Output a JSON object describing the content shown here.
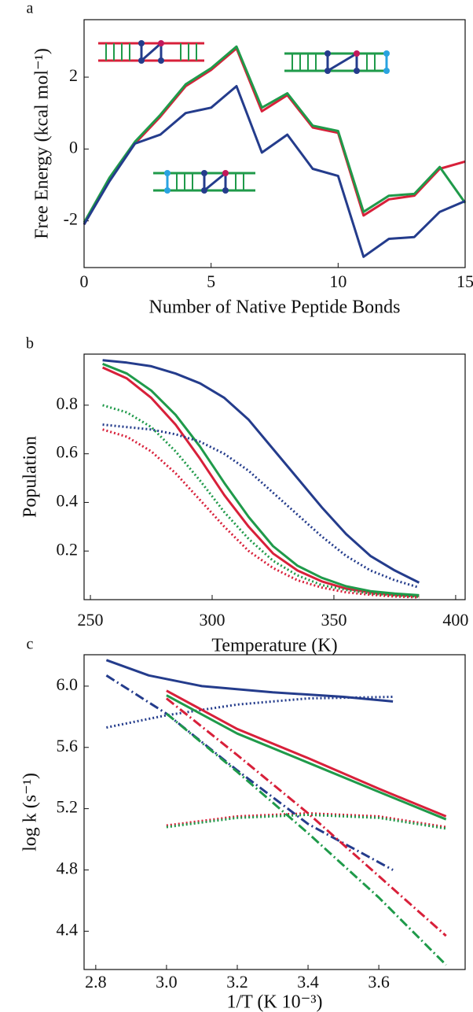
{
  "chart_data": [
    {
      "type": "line",
      "panel_label": "a",
      "x_label": "Number of Native Peptide Bonds",
      "y_label": "Free Energy (kcal mol⁻¹)",
      "x": [
        0,
        1,
        2,
        3,
        4,
        5,
        6,
        7,
        8,
        9,
        10,
        11,
        12,
        13,
        14,
        15
      ],
      "series": [
        {
          "color": "#d8203a",
          "dash": "solid",
          "values": [
            -2.1,
            -0.85,
            0.15,
            0.9,
            1.75,
            2.2,
            2.8,
            1.05,
            1.5,
            0.6,
            0.45,
            -1.85,
            -1.4,
            -1.3,
            -0.55,
            -0.35
          ]
        },
        {
          "color": "#1f9a4a",
          "dash": "solid",
          "values": [
            -2.05,
            -0.8,
            0.2,
            0.95,
            1.8,
            2.25,
            2.85,
            1.15,
            1.55,
            0.65,
            0.5,
            -1.75,
            -1.3,
            -1.25,
            -0.5,
            -1.5
          ]
        },
        {
          "color": "#243c8c",
          "dash": "solid",
          "values": [
            -2.1,
            -0.9,
            0.15,
            0.4,
            1.0,
            1.15,
            1.75,
            -0.1,
            0.4,
            -0.55,
            -0.75,
            -3.0,
            -2.5,
            -2.45,
            -1.75,
            -1.45
          ]
        }
      ],
      "xlim": [
        0,
        15
      ],
      "ylim": [
        -3.3,
        3.6
      ],
      "xticks": [
        0,
        5,
        10,
        15
      ],
      "yticks": [
        -2,
        0,
        2
      ],
      "grid": false
    },
    {
      "type": "line",
      "panel_label": "b",
      "x_label": "Temperature (K)",
      "y_label": "Population",
      "x": [
        255,
        265,
        275,
        285,
        295,
        305,
        315,
        325,
        335,
        345,
        355,
        365,
        375,
        385
      ],
      "series": [
        {
          "color": "#243c8c",
          "dash": "solid",
          "values": [
            0.985,
            0.975,
            0.96,
            0.93,
            0.89,
            0.83,
            0.74,
            0.62,
            0.5,
            0.38,
            0.27,
            0.18,
            0.12,
            0.07
          ]
        },
        {
          "color": "#d8203a",
          "dash": "solid",
          "values": [
            0.955,
            0.91,
            0.83,
            0.72,
            0.58,
            0.43,
            0.3,
            0.19,
            0.12,
            0.075,
            0.045,
            0.03,
            0.02,
            0.015
          ]
        },
        {
          "color": "#1f9a4a",
          "dash": "solid",
          "values": [
            0.97,
            0.93,
            0.86,
            0.76,
            0.63,
            0.48,
            0.34,
            0.22,
            0.14,
            0.09,
            0.055,
            0.035,
            0.025,
            0.018
          ]
        },
        {
          "color": "#243c8c",
          "dash": "dotted",
          "values": [
            0.72,
            0.71,
            0.7,
            0.68,
            0.65,
            0.6,
            0.53,
            0.44,
            0.35,
            0.26,
            0.18,
            0.12,
            0.08,
            0.05
          ]
        },
        {
          "color": "#1f9a4a",
          "dash": "dotted",
          "values": [
            0.8,
            0.77,
            0.71,
            0.61,
            0.49,
            0.36,
            0.25,
            0.16,
            0.1,
            0.06,
            0.04,
            0.025,
            0.018,
            0.012
          ]
        },
        {
          "color": "#d8203a",
          "dash": "dotted",
          "values": [
            0.7,
            0.67,
            0.61,
            0.52,
            0.41,
            0.3,
            0.2,
            0.13,
            0.08,
            0.05,
            0.03,
            0.02,
            0.013,
            0.009
          ]
        }
      ],
      "xlim": [
        247.4,
        403.9
      ],
      "ylim": [
        0,
        1.01
      ],
      "xticks": [
        250,
        300,
        350,
        400
      ],
      "yticks": [
        0.2,
        0.4,
        0.6,
        0.8
      ],
      "grid": false
    },
    {
      "type": "line",
      "panel_label": "c",
      "x_label": "1/T (K 10⁻³)",
      "y_label": "log k (s⁻¹)",
      "series": [
        {
          "color": "#243c8c",
          "dash": "solid",
          "x": [
            2.83,
            2.95,
            3.1,
            3.3,
            3.5,
            3.64
          ],
          "values": [
            6.17,
            6.07,
            6.0,
            5.96,
            5.93,
            5.9
          ]
        },
        {
          "color": "#243c8c",
          "dash": "dotted",
          "x": [
            2.83,
            3.0,
            3.2,
            3.4,
            3.64
          ],
          "values": [
            5.73,
            5.81,
            5.88,
            5.92,
            5.93
          ]
        },
        {
          "color": "#d8203a",
          "dash": "solid",
          "x": [
            3.0,
            3.2,
            3.4,
            3.6,
            3.79
          ],
          "values": [
            5.97,
            5.72,
            5.53,
            5.33,
            5.15
          ]
        },
        {
          "color": "#1f9a4a",
          "dash": "solid",
          "x": [
            3.0,
            3.2,
            3.4,
            3.6,
            3.79
          ],
          "values": [
            5.94,
            5.69,
            5.5,
            5.31,
            5.13
          ]
        },
        {
          "color": "#d8203a",
          "dash": "dotted",
          "x": [
            3.0,
            3.2,
            3.4,
            3.6,
            3.79
          ],
          "values": [
            5.09,
            5.15,
            5.17,
            5.15,
            5.08
          ]
        },
        {
          "color": "#1f9a4a",
          "dash": "dotted",
          "x": [
            3.0,
            3.2,
            3.4,
            3.6,
            3.79
          ],
          "values": [
            5.08,
            5.14,
            5.16,
            5.14,
            5.07
          ]
        },
        {
          "color": "#243c8c",
          "dash": "dashdot",
          "x": [
            2.83,
            3.0,
            3.2,
            3.4,
            3.64
          ],
          "values": [
            6.07,
            5.82,
            5.45,
            5.1,
            4.8
          ]
        },
        {
          "color": "#d8203a",
          "dash": "dashdot",
          "x": [
            3.0,
            3.2,
            3.4,
            3.6,
            3.79
          ],
          "values": [
            5.92,
            5.55,
            5.17,
            4.76,
            4.37
          ]
        },
        {
          "color": "#1f9a4a",
          "dash": "dashdot",
          "x": [
            3.0,
            3.2,
            3.4,
            3.6,
            3.79
          ],
          "values": [
            5.82,
            5.44,
            5.04,
            4.62,
            4.18
          ]
        }
      ],
      "xlim": [
        2.767,
        3.844
      ],
      "ylim": [
        4.15,
        6.205
      ],
      "xticks": [
        2.8,
        {
          "value": 3,
          "label": "3.0"
        },
        3.2,
        3.4,
        3.6
      ],
      "yticks": [
        4.4,
        4.8,
        5.2,
        5.6,
        {
          "value": 6,
          "label": "6.0"
        }
      ],
      "grid": false
    }
  ]
}
